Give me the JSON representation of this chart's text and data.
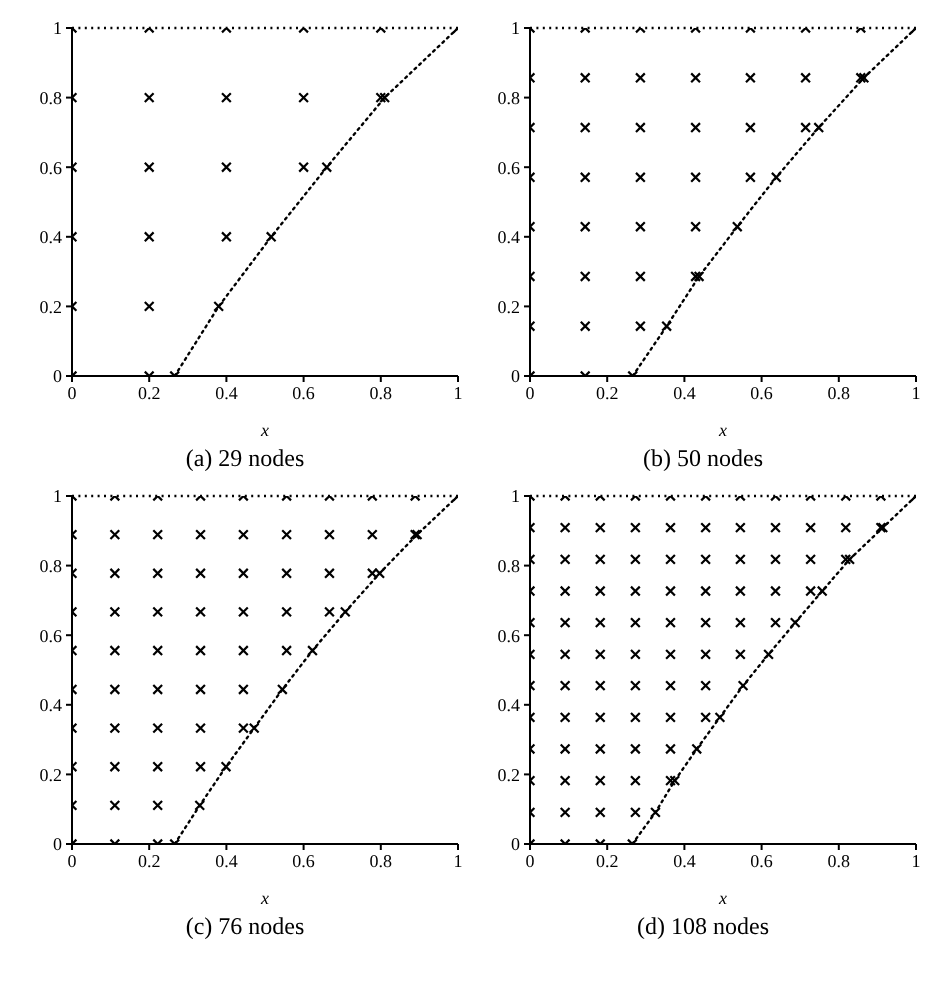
{
  "chart_data": [
    {
      "type": "scatter",
      "title": "(a) 29 nodes",
      "xlabel": "x",
      "xlim": [
        0,
        1
      ],
      "xticks": [
        0,
        0.2,
        0.4,
        0.6,
        0.8,
        1
      ],
      "ylim": [
        0,
        1
      ],
      "yticks": [
        0,
        0.2,
        0.4,
        0.6,
        0.8,
        1
      ],
      "ref_lines": [
        {
          "axis": "y",
          "value": 1,
          "line_style": "dotted",
          "color": "#000000"
        }
      ],
      "series": [
        {
          "marker": "cross",
          "color": "#000000",
          "x": [
            0,
            0.2,
            0.266,
            0,
            0.2,
            0.38,
            0,
            0.2,
            0.4,
            0.516,
            0,
            0.2,
            0.4,
            0.6,
            0.66,
            0,
            0.2,
            0.4,
            0.6,
            0.8,
            0.81,
            0,
            0.2,
            0.4,
            0.6,
            0.8,
            1
          ],
          "values": [
            0,
            0,
            0,
            0.2,
            0.2,
            0.2,
            0.4,
            0.4,
            0.4,
            0.4,
            0.6,
            0.6,
            0.6,
            0.6,
            0.6,
            0.8,
            0.8,
            0.8,
            0.8,
            0.8,
            0.8,
            1,
            1,
            1,
            1,
            1,
            1
          ]
        },
        {
          "type": "line",
          "color": "#000000",
          "line_style": "dotted",
          "x": [
            0.266,
            0.38,
            0.516,
            0.66,
            0.81,
            1
          ],
          "values": [
            0,
            0.2,
            0.4,
            0.6,
            0.8,
            1
          ]
        }
      ]
    },
    {
      "type": "scatter",
      "title": "(b) 50 nodes",
      "xlabel": "x",
      "xlim": [
        0,
        1
      ],
      "xticks": [
        0,
        0.2,
        0.4,
        0.6,
        0.8,
        1
      ],
      "ylim": [
        0,
        1
      ],
      "yticks": [
        0,
        0.2,
        0.4,
        0.6,
        0.8,
        1
      ],
      "ref_lines": [
        {
          "axis": "y",
          "value": 1,
          "line_style": "dotted",
          "color": "#000000"
        }
      ],
      "series": [
        {
          "marker": "cross",
          "color": "#000000",
          "x": [
            0,
            0.143,
            0.266,
            0,
            0.143,
            0.286,
            0.354,
            0,
            0.143,
            0.286,
            0.429,
            0.438,
            0,
            0.143,
            0.286,
            0.429,
            0.537,
            0,
            0.143,
            0.286,
            0.429,
            0.571,
            0.638,
            0,
            0.143,
            0.286,
            0.429,
            0.571,
            0.714,
            0.748,
            0,
            0.143,
            0.286,
            0.429,
            0.571,
            0.714,
            0.857,
            0.865,
            0,
            0.143,
            0.286,
            0.429,
            0.571,
            0.714,
            0.857,
            1
          ],
          "values": [
            0,
            0,
            0,
            0.143,
            0.143,
            0.143,
            0.143,
            0.286,
            0.286,
            0.286,
            0.286,
            0.286,
            0.429,
            0.429,
            0.429,
            0.429,
            0.429,
            0.571,
            0.571,
            0.571,
            0.571,
            0.571,
            0.571,
            0.714,
            0.714,
            0.714,
            0.714,
            0.714,
            0.714,
            0.714,
            0.857,
            0.857,
            0.857,
            0.857,
            0.857,
            0.857,
            0.857,
            0.857,
            1,
            1,
            1,
            1,
            1,
            1,
            1,
            1
          ]
        },
        {
          "type": "line",
          "color": "#000000",
          "line_style": "dotted",
          "x": [
            0.266,
            0.354,
            0.438,
            0.537,
            0.638,
            0.748,
            0.865,
            1
          ],
          "values": [
            0,
            0.143,
            0.286,
            0.429,
            0.571,
            0.714,
            0.857,
            1
          ]
        }
      ]
    },
    {
      "type": "scatter",
      "title": "(c) 76 nodes",
      "xlabel": "x",
      "xlim": [
        0,
        1
      ],
      "xticks": [
        0,
        0.2,
        0.4,
        0.6,
        0.8,
        1
      ],
      "ylim": [
        0,
        1
      ],
      "yticks": [
        0,
        0.2,
        0.4,
        0.6,
        0.8,
        1
      ],
      "ref_lines": [
        {
          "axis": "y",
          "value": 1,
          "line_style": "dotted",
          "color": "#000000"
        }
      ],
      "series": [
        {
          "marker": "cross",
          "color": "#000000",
          "x": [
            0,
            0.111,
            0.222,
            0.266,
            0,
            0.111,
            0.222,
            0.331,
            0,
            0.111,
            0.222,
            0.333,
            0.399,
            0,
            0.111,
            0.222,
            0.333,
            0.444,
            0.472,
            0,
            0.111,
            0.222,
            0.333,
            0.444,
            0.545,
            0,
            0.111,
            0.222,
            0.333,
            0.444,
            0.556,
            0.623,
            0,
            0.111,
            0.222,
            0.333,
            0.444,
            0.556,
            0.667,
            0.708,
            0,
            0.111,
            0.222,
            0.333,
            0.444,
            0.556,
            0.667,
            0.778,
            0.797,
            0,
            0.111,
            0.222,
            0.333,
            0.444,
            0.556,
            0.667,
            0.778,
            0.889,
            0.894,
            0,
            0.111,
            0.222,
            0.333,
            0.444,
            0.556,
            0.667,
            0.778,
            0.889,
            1
          ],
          "values": [
            0,
            0,
            0,
            0,
            0.111,
            0.111,
            0.111,
            0.111,
            0.222,
            0.222,
            0.222,
            0.222,
            0.222,
            0.333,
            0.333,
            0.333,
            0.333,
            0.333,
            0.333,
            0.444,
            0.444,
            0.444,
            0.444,
            0.444,
            0.444,
            0.556,
            0.556,
            0.556,
            0.556,
            0.556,
            0.556,
            0.556,
            0.667,
            0.667,
            0.667,
            0.667,
            0.667,
            0.667,
            0.667,
            0.667,
            0.778,
            0.778,
            0.778,
            0.778,
            0.778,
            0.778,
            0.778,
            0.778,
            0.778,
            0.889,
            0.889,
            0.889,
            0.889,
            0.889,
            0.889,
            0.889,
            0.889,
            0.889,
            0.889,
            1,
            1,
            1,
            1,
            1,
            1,
            1,
            1,
            1,
            1
          ]
        },
        {
          "type": "line",
          "color": "#000000",
          "line_style": "dotted",
          "x": [
            0.266,
            0.331,
            0.399,
            0.472,
            0.545,
            0.623,
            0.708,
            0.797,
            0.894,
            1
          ],
          "values": [
            0,
            0.111,
            0.222,
            0.333,
            0.444,
            0.556,
            0.667,
            0.778,
            0.889,
            1
          ]
        }
      ]
    },
    {
      "type": "scatter",
      "title": "(d) 108 nodes",
      "xlabel": "x",
      "xlim": [
        0,
        1
      ],
      "xticks": [
        0,
        0.2,
        0.4,
        0.6,
        0.8,
        1
      ],
      "ylim": [
        0,
        1
      ],
      "yticks": [
        0,
        0.2,
        0.4,
        0.6,
        0.8,
        1
      ],
      "ref_lines": [
        {
          "axis": "y",
          "value": 1,
          "line_style": "dotted",
          "color": "#000000"
        }
      ],
      "series": [
        {
          "marker": "cross",
          "color": "#000000",
          "x": [
            0,
            0.091,
            0.182,
            0.265,
            0,
            0.091,
            0.182,
            0.273,
            0.325,
            0,
            0.091,
            0.182,
            0.273,
            0.364,
            0.375,
            0,
            0.091,
            0.182,
            0.273,
            0.364,
            0.432,
            0,
            0.091,
            0.182,
            0.273,
            0.364,
            0.455,
            0.492,
            0,
            0.091,
            0.182,
            0.273,
            0.364,
            0.455,
            0.552,
            0,
            0.091,
            0.182,
            0.273,
            0.364,
            0.455,
            0.545,
            0.618,
            0,
            0.091,
            0.182,
            0.273,
            0.364,
            0.455,
            0.545,
            0.636,
            0.687,
            0,
            0.091,
            0.182,
            0.273,
            0.364,
            0.455,
            0.545,
            0.636,
            0.727,
            0.757,
            0,
            0.091,
            0.182,
            0.273,
            0.364,
            0.455,
            0.545,
            0.636,
            0.727,
            0.818,
            0.828,
            0,
            0.091,
            0.182,
            0.273,
            0.364,
            0.455,
            0.545,
            0.636,
            0.727,
            0.818,
            0.909,
            0.914,
            0,
            0.091,
            0.182,
            0.273,
            0.364,
            0.455,
            0.545,
            0.636,
            0.727,
            0.818,
            0.909,
            1
          ],
          "values": [
            0,
            0,
            0,
            0,
            0.091,
            0.091,
            0.091,
            0.091,
            0.091,
            0.182,
            0.182,
            0.182,
            0.182,
            0.182,
            0.182,
            0.273,
            0.273,
            0.273,
            0.273,
            0.273,
            0.273,
            0.364,
            0.364,
            0.364,
            0.364,
            0.364,
            0.364,
            0.364,
            0.455,
            0.455,
            0.455,
            0.455,
            0.455,
            0.455,
            0.455,
            0.545,
            0.545,
            0.545,
            0.545,
            0.545,
            0.545,
            0.545,
            0.545,
            0.636,
            0.636,
            0.636,
            0.636,
            0.636,
            0.636,
            0.636,
            0.636,
            0.636,
            0.727,
            0.727,
            0.727,
            0.727,
            0.727,
            0.727,
            0.727,
            0.727,
            0.727,
            0.727,
            0.818,
            0.818,
            0.818,
            0.818,
            0.818,
            0.818,
            0.818,
            0.818,
            0.818,
            0.818,
            0.818,
            0.909,
            0.909,
            0.909,
            0.909,
            0.909,
            0.909,
            0.909,
            0.909,
            0.909,
            0.909,
            0.909,
            0.909,
            1,
            1,
            1,
            1,
            1,
            1,
            1,
            1,
            1,
            1,
            1,
            1
          ]
        },
        {
          "type": "line",
          "color": "#000000",
          "line_style": "dotted",
          "x": [
            0.265,
            0.325,
            0.375,
            0.432,
            0.492,
            0.552,
            0.618,
            0.687,
            0.757,
            0.828,
            0.914,
            1
          ],
          "values": [
            0,
            0.091,
            0.182,
            0.273,
            0.364,
            0.455,
            0.545,
            0.636,
            0.727,
            0.818,
            0.909,
            1
          ]
        }
      ]
    }
  ]
}
